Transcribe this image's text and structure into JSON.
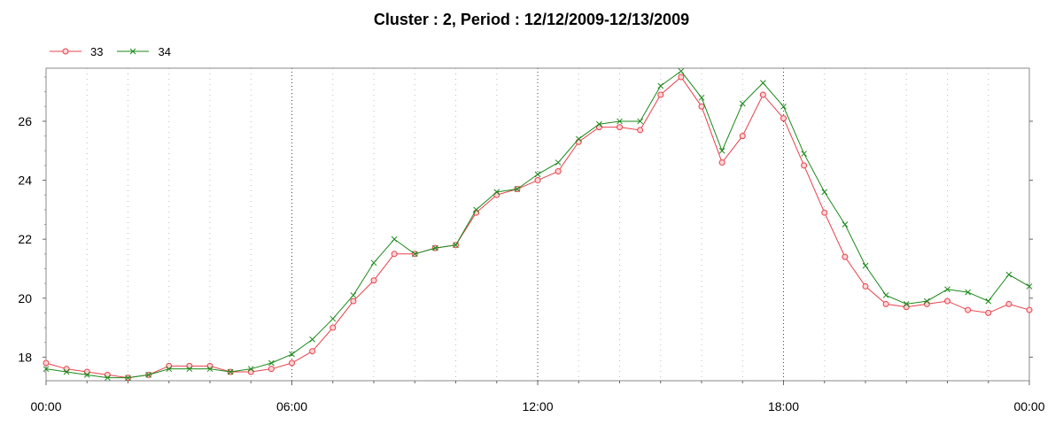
{
  "chart_data": {
    "type": "line",
    "title": "Cluster : 2, Period : 12/12/2009-12/13/2009",
    "xlabel": "",
    "ylabel": "",
    "x_tick_labels": [
      "00:00",
      "06:00",
      "12:00",
      "18:00",
      "00:00"
    ],
    "y_ticks": [
      18,
      20,
      22,
      24,
      26
    ],
    "xlim_hours": [
      0,
      24
    ],
    "ylim": [
      17.2,
      27.8
    ],
    "grid": "vertical dotted",
    "legend_position": "top-left",
    "x_hours": [
      0,
      0.5,
      1,
      1.5,
      2,
      2.5,
      3,
      3.5,
      4,
      4.5,
      5,
      5.5,
      6,
      6.5,
      7,
      7.5,
      8,
      8.5,
      9,
      9.5,
      10,
      10.5,
      11,
      11.5,
      12,
      12.5,
      13,
      13.5,
      14,
      14.5,
      15,
      15.5,
      16,
      16.5,
      17,
      17.5,
      18,
      18.5,
      19,
      19.5,
      20,
      20.5,
      21,
      21.5,
      22,
      22.5,
      23,
      23.5,
      24
    ],
    "series": [
      {
        "name": "33",
        "color": "#e8404a",
        "marker": "circle",
        "values": [
          17.8,
          17.6,
          17.5,
          17.4,
          17.3,
          17.4,
          17.7,
          17.7,
          17.7,
          17.5,
          17.5,
          17.6,
          17.8,
          18.2,
          19.0,
          19.9,
          20.6,
          21.5,
          21.5,
          21.7,
          21.8,
          22.9,
          23.5,
          23.7,
          24.0,
          24.3,
          25.3,
          25.8,
          25.8,
          25.7,
          26.9,
          27.5,
          26.5,
          24.6,
          25.5,
          26.9,
          26.1,
          24.5,
          22.9,
          21.4,
          20.4,
          19.8,
          19.7,
          19.8,
          19.9,
          19.6,
          19.5,
          19.8,
          19.6
        ]
      },
      {
        "name": "34",
        "color": "#1a8a1a",
        "marker": "x",
        "values": [
          17.6,
          17.5,
          17.4,
          17.3,
          17.3,
          17.4,
          17.6,
          17.6,
          17.6,
          17.5,
          17.6,
          17.8,
          18.1,
          18.6,
          19.3,
          20.1,
          21.2,
          22.0,
          21.5,
          21.7,
          21.8,
          23.0,
          23.6,
          23.7,
          24.2,
          24.6,
          25.4,
          25.9,
          26.0,
          26.0,
          27.2,
          27.7,
          26.8,
          25.0,
          26.6,
          27.3,
          26.5,
          24.9,
          23.6,
          22.5,
          21.1,
          20.1,
          19.8,
          19.9,
          20.3,
          20.2,
          19.9,
          20.8,
          20.4
        ]
      }
    ]
  }
}
